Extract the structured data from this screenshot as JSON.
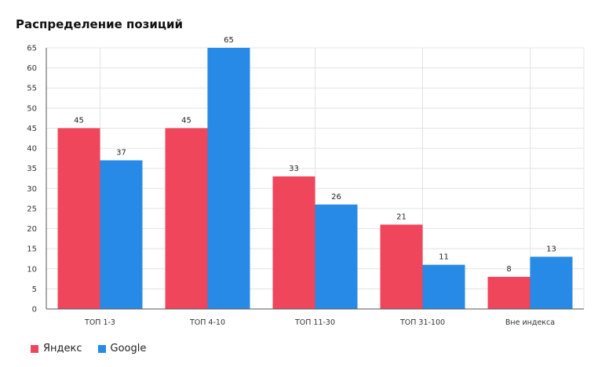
{
  "chart_data": {
    "type": "bar",
    "title": "Распределение позиций",
    "categories": [
      "ТОП 1-3",
      "ТОП 4-10",
      "ТОП 11-30",
      "ТОП 31-100",
      "Вне индекса"
    ],
    "series": [
      {
        "name": "Яндекс",
        "color": "#ef465c",
        "values": [
          45,
          45,
          33,
          21,
          8
        ]
      },
      {
        "name": "Google",
        "color": "#268ae6",
        "values": [
          37,
          65,
          26,
          11,
          13
        ]
      }
    ],
    "ylim": [
      0,
      65
    ],
    "yticks": [
      0,
      5,
      10,
      15,
      20,
      25,
      30,
      35,
      40,
      45,
      50,
      55,
      60,
      65
    ],
    "grid": true,
    "legend_position": "bottom-left",
    "data_labels": true
  }
}
